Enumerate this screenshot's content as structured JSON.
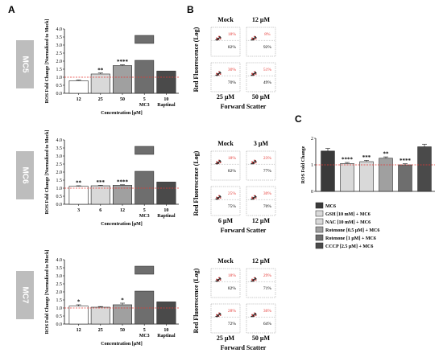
{
  "panel_labels": {
    "a": "A",
    "b": "B",
    "c": "C"
  },
  "colors": {
    "bar_white": "#ffffff",
    "bar_light": "#d9d9d9",
    "bar_mid": "#a0a0a0",
    "bar_dark": "#6e6e6e",
    "bar_darker": "#4a4a4a",
    "bar_darkest": "#3a3a3a",
    "ref_line": "#e53935",
    "pct_red": "#e53935",
    "sidebar": "#bdbdbd"
  },
  "chart_data": [
    {
      "id": "mc5",
      "type": "bar",
      "side_label": "MC5",
      "ylabel": "ROS Fold Change [Normalized to Mock]",
      "xlabel": "Concentration [µM]",
      "ylim": [
        0,
        4.0
      ],
      "yticks": [
        "0.0",
        "0.5",
        "1.0",
        "1.5",
        "2.0",
        "2.5",
        "3.0",
        "3.5",
        "4.0"
      ],
      "reference_line": 1.0,
      "categories": [
        "12",
        "25",
        "50",
        "5",
        "10"
      ],
      "sublabels": [
        "",
        "",
        "",
        "MC3",
        "Raptinal"
      ],
      "values": [
        0.78,
        1.2,
        1.72,
        3.6,
        1.38
      ],
      "errors": [
        0.04,
        0.06,
        0.05,
        0,
        0
      ],
      "significance": [
        "",
        "**",
        "****",
        "",
        ""
      ],
      "split_bar": [
        false,
        false,
        false,
        true,
        false
      ]
    },
    {
      "id": "mc6",
      "type": "bar",
      "side_label": "MC6",
      "ylabel": "ROS Fold Change [Normalized to Mock]",
      "xlabel": "Concentration [µM]",
      "ylim": [
        0,
        4.0
      ],
      "yticks": [
        "0.0",
        "0.5",
        "1.0",
        "1.5",
        "2.0",
        "2.5",
        "3.0",
        "3.5",
        "4.0"
      ],
      "reference_line": 1.0,
      "categories": [
        "3",
        "6",
        "12",
        "5",
        "10"
      ],
      "sublabels": [
        "",
        "",
        "",
        "MC3",
        "Raptinal"
      ],
      "values": [
        1.12,
        1.15,
        1.18,
        3.6,
        1.38
      ],
      "errors": [
        0.03,
        0.03,
        0.03,
        0,
        0
      ],
      "significance": [
        "**",
        "***",
        "****",
        "",
        ""
      ],
      "split_bar": [
        false,
        false,
        false,
        true,
        false
      ]
    },
    {
      "id": "mc7",
      "type": "bar",
      "side_label": "MC7",
      "ylabel": "ROS Fold Change [Normalized to Mock]",
      "xlabel": "Concentration [µM]",
      "ylim": [
        0,
        4.0
      ],
      "yticks": [
        "0.0",
        "0.5",
        "1.0",
        "1.5",
        "2.0",
        "2.5",
        "3.0",
        "3.5",
        "4.0"
      ],
      "reference_line": 1.0,
      "categories": [
        "12",
        "25",
        "50",
        "5",
        "10"
      ],
      "sublabels": [
        "",
        "",
        "",
        "MC3",
        "Raptinal"
      ],
      "values": [
        1.12,
        1.05,
        1.2,
        3.6,
        1.38
      ],
      "errors": [
        0.08,
        0.04,
        0.1,
        0,
        0
      ],
      "significance": [
        "*",
        "",
        "*",
        "",
        ""
      ],
      "split_bar": [
        false,
        false,
        false,
        true,
        false
      ]
    },
    {
      "id": "c",
      "type": "bar",
      "ylabel": "ROS Fold Change",
      "ylim": [
        0,
        2.0
      ],
      "yticks": [
        "0",
        "1",
        "2"
      ],
      "reference_line": 1.0,
      "values": [
        1.52,
        1.05,
        1.12,
        1.25,
        1.0,
        1.68
      ],
      "errors": [
        0.1,
        0.04,
        0.05,
        0.05,
        0.04,
        0.1
      ],
      "significance": [
        "",
        "****",
        "***",
        "**",
        "****",
        ""
      ],
      "legend": [
        "MC6",
        "GSH [10 mM] + MC6",
        "NAC [10 mM] + MC6",
        "Rotenone [0.5 µM] + MC6",
        "Rotenone [1 µM] + MC6",
        "CCCP [2.5 µM] + MC6"
      ]
    }
  ],
  "flow_panels": [
    {
      "top_labels": [
        "Mock",
        "12 µM"
      ],
      "bottom_labels": [
        "25 µM",
        "50 µM"
      ],
      "quads": [
        [
          "18%",
          "82%"
        ],
        [
          "8%",
          "92%"
        ],
        [
          "30%",
          "70%"
        ],
        [
          "51%",
          "49%"
        ]
      ],
      "ylabel": "Red Fluorescence (Log)",
      "xlabel": "Forward Scatter"
    },
    {
      "top_labels": [
        "Mock",
        "3 µM"
      ],
      "bottom_labels": [
        "6 µM",
        "12 µM"
      ],
      "quads": [
        [
          "18%",
          "82%"
        ],
        [
          "23%",
          "77%"
        ],
        [
          "25%",
          "75%"
        ],
        [
          "30%",
          "70%"
        ]
      ],
      "ylabel": "Red Fluorescence (Log)",
      "xlabel": "Forward Scatter"
    },
    {
      "top_labels": [
        "Mock",
        "12 µM"
      ],
      "bottom_labels": [
        "25 µM",
        "50 µM"
      ],
      "quads": [
        [
          "18%",
          "82%"
        ],
        [
          "29%",
          "71%"
        ],
        [
          "28%",
          "72%"
        ],
        [
          "36%",
          "64%"
        ]
      ],
      "ylabel": "Red Fluorescence (Log)",
      "xlabel": "Forward Scatter"
    }
  ]
}
